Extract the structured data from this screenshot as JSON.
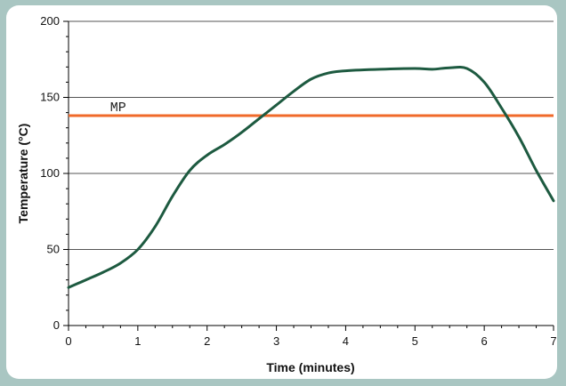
{
  "chart_data": {
    "type": "line",
    "xlabel": "Time (minutes)",
    "ylabel": "Temperature (°C)",
    "xlim": [
      0,
      7
    ],
    "ylim": [
      0,
      200
    ],
    "x_ticks": [
      "0",
      "1",
      "2",
      "3",
      "4",
      "5",
      "6",
      "7"
    ],
    "y_ticks": [
      "0",
      "50",
      "100",
      "150",
      "200"
    ],
    "grid": "horizontal",
    "series": [
      {
        "color": "#1d5a40",
        "points": [
          [
            0,
            25
          ],
          [
            0.25,
            30
          ],
          [
            0.5,
            35
          ],
          [
            0.75,
            41
          ],
          [
            1,
            50
          ],
          [
            1.25,
            65
          ],
          [
            1.5,
            85
          ],
          [
            1.75,
            102
          ],
          [
            2,
            112
          ],
          [
            2.25,
            119
          ],
          [
            2.5,
            127
          ],
          [
            2.75,
            136
          ],
          [
            3,
            145
          ],
          [
            3.25,
            154
          ],
          [
            3.5,
            162
          ],
          [
            3.75,
            166
          ],
          [
            4,
            167.5
          ],
          [
            4.5,
            168.5
          ],
          [
            5,
            169
          ],
          [
            5.25,
            168.5
          ],
          [
            5.5,
            169.5
          ],
          [
            5.75,
            169
          ],
          [
            6,
            160
          ],
          [
            6.25,
            143
          ],
          [
            6.5,
            124
          ],
          [
            6.75,
            102
          ],
          [
            7,
            82
          ]
        ]
      }
    ],
    "reference_line": {
      "label": "MP",
      "y": 138,
      "color": "#f06a2a"
    }
  }
}
